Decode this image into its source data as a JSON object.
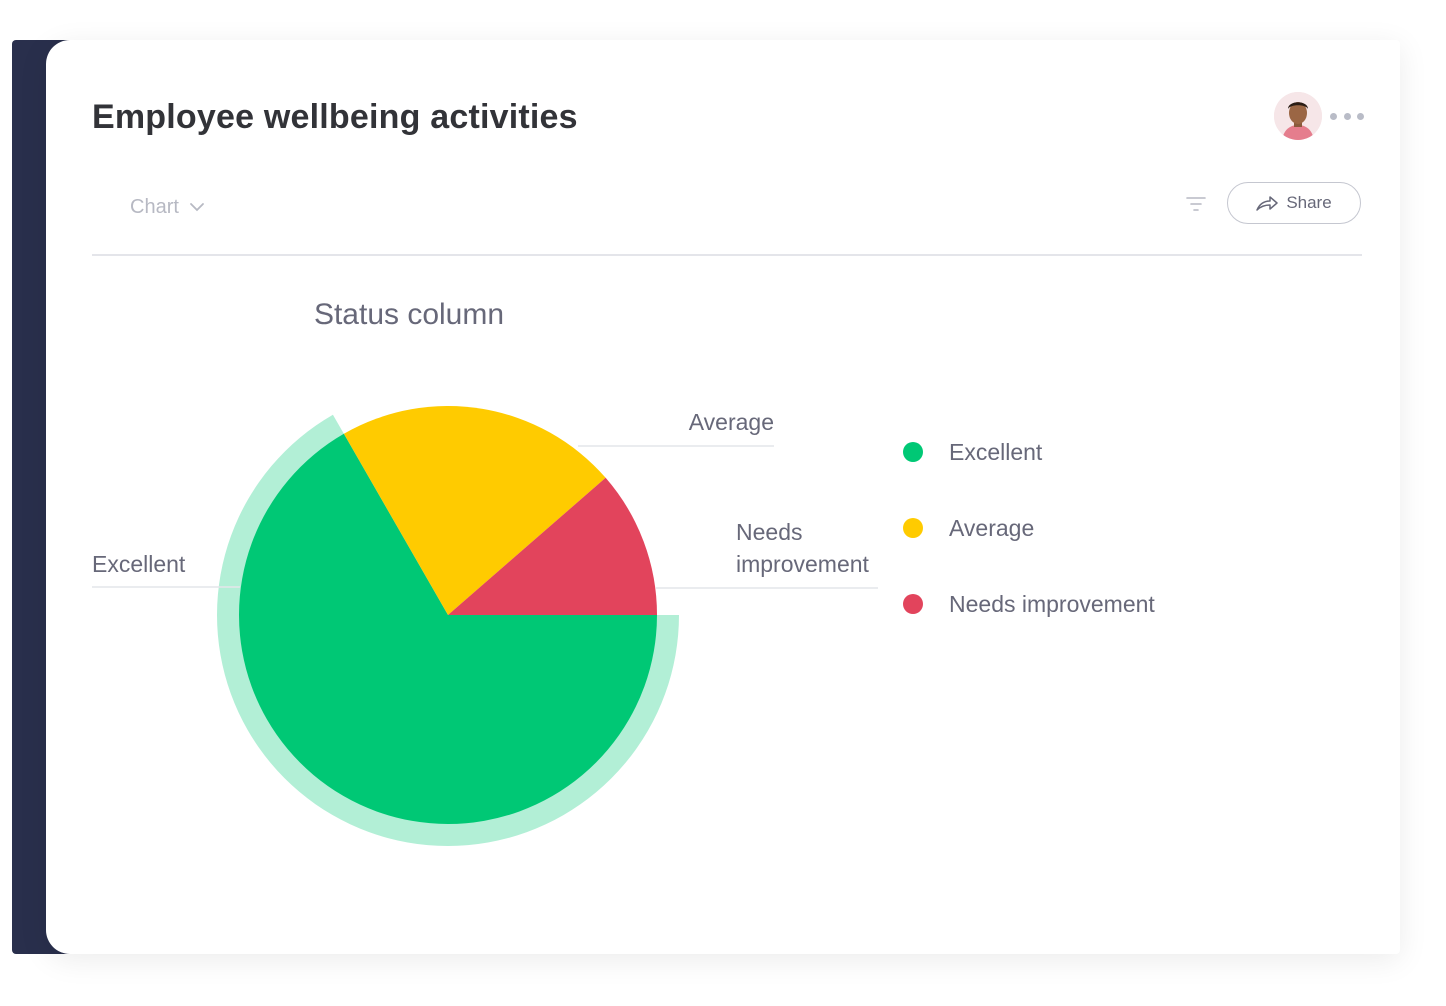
{
  "header": {
    "title": "Employee wellbeing activities",
    "avatar_icon": "user-avatar",
    "more_icon": "more-horizontal-icon"
  },
  "toolbar": {
    "view_label": "Chart",
    "view_icon": "chevron-down-icon",
    "filter_icon": "filter-icon",
    "share_label": "Share",
    "share_icon": "share-arrow-icon"
  },
  "colors": {
    "accent_dark": "#292f4c",
    "excellent": "#00c875",
    "average": "#ffcb00",
    "needs_improvement": "#e2445c",
    "excellent_highlight": "#b2efd6"
  },
  "chart_data": {
    "type": "pie",
    "title": "Status column",
    "categories": [
      "Excellent",
      "Average",
      "Needs improvement"
    ],
    "values": [
      66.7,
      21.9,
      11.4
    ],
    "colors": [
      "#00c875",
      "#ffcb00",
      "#e2445c"
    ],
    "slice_labels": [
      "Excellent",
      "Average",
      "Needs improvement"
    ],
    "highlighted": "Excellent",
    "legend_position": "right"
  }
}
